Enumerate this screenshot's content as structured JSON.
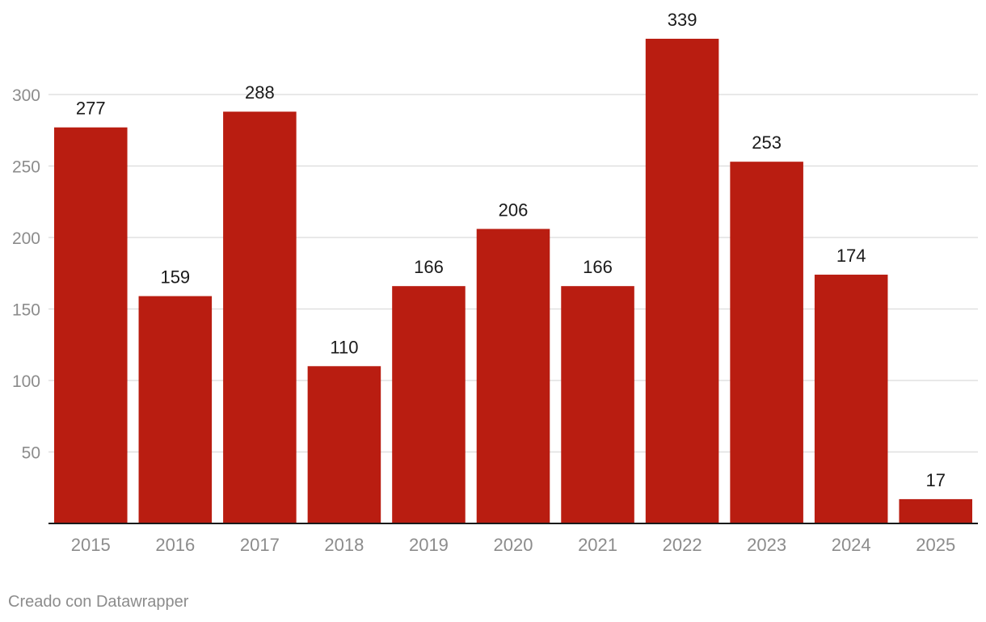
{
  "chart_data": {
    "type": "bar",
    "categories": [
      "2015",
      "2016",
      "2017",
      "2018",
      "2019",
      "2020",
      "2021",
      "2022",
      "2023",
      "2024",
      "2025"
    ],
    "values": [
      277,
      159,
      288,
      110,
      166,
      206,
      166,
      339,
      253,
      174,
      17
    ],
    "data_labels": [
      "277",
      "159",
      "288",
      "110",
      "166",
      "206",
      "166",
      "339",
      "253",
      "174",
      "17"
    ],
    "y_ticks": [
      50,
      100,
      150,
      200,
      250,
      300
    ],
    "y_tick_labels": [
      "50",
      "100",
      "150",
      "200",
      "250",
      "300"
    ],
    "ylim": [
      0,
      339
    ],
    "grid": true,
    "bar_color": "#b91d11",
    "title": "",
    "xlabel": "",
    "ylabel": ""
  },
  "footer": {
    "credit": "Creado con Datawrapper"
  },
  "colors": {
    "grid": "#e0e0e0",
    "axis": "#1a1a1a",
    "tick_label": "#8c8c8c",
    "data_label": "#1a1a1a"
  }
}
